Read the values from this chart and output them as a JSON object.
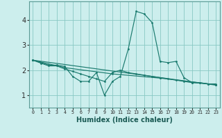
{
  "xlabel": "Humidex (Indice chaleur)",
  "ylabel": "",
  "bg_color": "#cceeed",
  "grid_color": "#88c8c4",
  "line_color": "#1a7a6e",
  "xlim": [
    -0.5,
    23.5
  ],
  "ylim": [
    0.5,
    4.75
  ],
  "xticks": [
    0,
    1,
    2,
    3,
    4,
    5,
    6,
    7,
    8,
    9,
    10,
    11,
    12,
    13,
    14,
    15,
    16,
    17,
    18,
    19,
    20,
    21,
    22,
    23
  ],
  "yticks": [
    1,
    2,
    3,
    4
  ],
  "series": [
    [
      0,
      2.4,
      1,
      2.3,
      2,
      2.2,
      3,
      2.2,
      4,
      2.15,
      5,
      1.75,
      6,
      1.55,
      7,
      1.55,
      8,
      1.9,
      9,
      1.0,
      10,
      1.55,
      11,
      1.75,
      12,
      2.85,
      13,
      4.35,
      14,
      4.25,
      15,
      3.9,
      16,
      2.35,
      17,
      2.3,
      18,
      2.35,
      19,
      1.7,
      20,
      1.5,
      21,
      1.5,
      22,
      1.45,
      23,
      1.45
    ],
    [
      0,
      2.4,
      1,
      2.28,
      2,
      2.17,
      3,
      2.17,
      4,
      2.05,
      5,
      1.95,
      6,
      1.85,
      7,
      1.75,
      8,
      1.65,
      9,
      1.55,
      10,
      1.9,
      11,
      2.0,
      12,
      1.9,
      13,
      1.85,
      14,
      1.8,
      15,
      1.75,
      16,
      1.7,
      17,
      1.65,
      18,
      1.6,
      19,
      1.55,
      20,
      1.5,
      21,
      1.48,
      22,
      1.45,
      23,
      1.42
    ],
    [
      0,
      2.4,
      23,
      1.4
    ],
    [
      0,
      2.4,
      4,
      2.1,
      10,
      1.85,
      16,
      1.68,
      23,
      1.42
    ]
  ]
}
